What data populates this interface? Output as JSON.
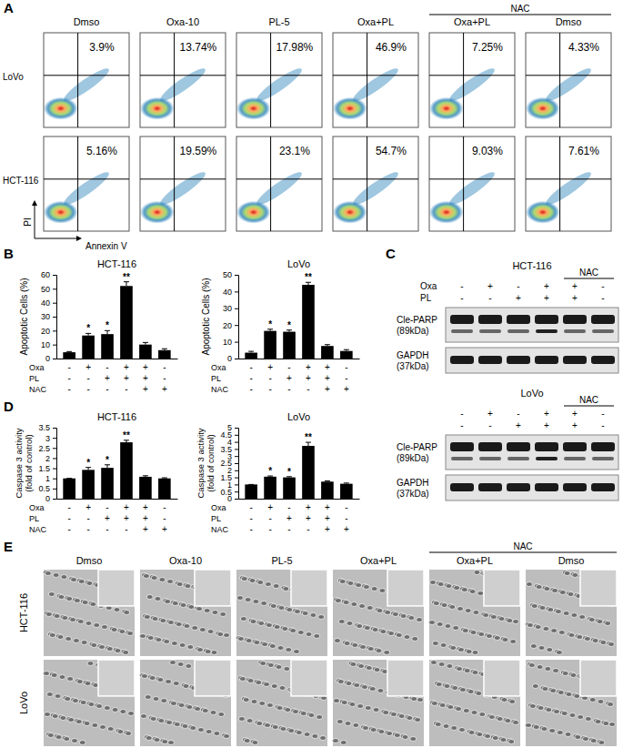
{
  "chart_data": [
    {
      "type": "bar",
      "title": "HCT-116",
      "y_label": "Apoptotic Cells (%)",
      "categories": [
        null,
        null,
        null,
        null,
        null,
        null
      ],
      "values": [
        4.5,
        16.5,
        17.5,
        52,
        10,
        6
      ],
      "errors": [
        0.5,
        1.5,
        2.5,
        3,
        1.5,
        1
      ],
      "annotations": [
        null,
        "*",
        "*",
        "**",
        null,
        null
      ],
      "color": "#000000",
      "ylim": [
        0,
        60
      ],
      "yticks": [
        0,
        10,
        20,
        30,
        40,
        50,
        60
      ],
      "tick_labels": "y",
      "treatments": [
        {
          "name": "Oxa",
          "signs": [
            "-",
            "+",
            "-",
            "+",
            "+",
            "-"
          ]
        },
        {
          "name": "PL",
          "signs": [
            "-",
            "-",
            "+",
            "+",
            "+",
            "-"
          ]
        },
        {
          "name": "NAC",
          "signs": [
            "-",
            "-",
            "-",
            "-",
            "+",
            "+"
          ]
        }
      ]
    },
    {
      "type": "bar",
      "title": "LoVo",
      "y_label": "Apoptotic Cells (%)",
      "categories": [
        null,
        null,
        null,
        null,
        null,
        null
      ],
      "values": [
        3.5,
        16.5,
        16,
        44,
        7.5,
        4.5
      ],
      "errors": [
        0.8,
        1,
        1,
        1.5,
        0.8,
        0.8
      ],
      "annotations": [
        null,
        "*",
        "*",
        "**",
        null,
        null
      ],
      "color": "#000000",
      "ylim": [
        0,
        50
      ],
      "yticks": [
        0,
        10,
        20,
        30,
        40,
        50
      ],
      "tick_labels": "y",
      "treatments": [
        {
          "name": "Oxa",
          "signs": [
            "-",
            "+",
            "-",
            "+",
            "+",
            "-"
          ]
        },
        {
          "name": "PL",
          "signs": [
            "-",
            "-",
            "+",
            "+",
            "+",
            "-"
          ]
        },
        {
          "name": "NAC",
          "signs": [
            "-",
            "-",
            "-",
            "-",
            "+",
            "+"
          ]
        }
      ]
    },
    {
      "type": "bar",
      "title": "HCT-116",
      "y_label": [
        "Caspase 3 activity",
        "(fold of control)"
      ],
      "categories": [
        null,
        null,
        null,
        null,
        null,
        null
      ],
      "values": [
        1,
        1.42,
        1.52,
        2.78,
        1.08,
        1.0
      ],
      "errors": [
        0,
        0.12,
        0.15,
        0.1,
        0.05,
        0.03
      ],
      "annotations": [
        null,
        "*",
        "*",
        "**",
        null,
        null
      ],
      "color": "#000000",
      "ylim": [
        0,
        3.5
      ],
      "yticks": [
        0,
        0.5,
        1,
        1.5,
        2,
        2.5,
        3,
        3.5
      ],
      "tick_labels": "y",
      "treatments": [
        {
          "name": "Oxa",
          "signs": [
            "-",
            "+",
            "-",
            "+",
            "+",
            "-"
          ]
        },
        {
          "name": "PL",
          "signs": [
            "-",
            "-",
            "+",
            "+",
            "+",
            "-"
          ]
        },
        {
          "name": "NAC",
          "signs": [
            "-",
            "-",
            "-",
            "-",
            "+",
            "+"
          ]
        }
      ]
    },
    {
      "type": "bar",
      "title": "LoVo",
      "y_label": [
        "Caspase 3 activity",
        "(fold of control)"
      ],
      "categories": [
        null,
        null,
        null,
        null,
        null,
        null
      ],
      "values": [
        1,
        1.55,
        1.5,
        3.72,
        1.2,
        1.05
      ],
      "errors": [
        0,
        0.05,
        0.05,
        0.25,
        0.05,
        0.05
      ],
      "annotations": [
        null,
        "*",
        "*",
        "**",
        null,
        null
      ],
      "color": "#000000",
      "ylim": [
        0,
        5
      ],
      "yticks": [
        0,
        0.5,
        1,
        1.5,
        2,
        2.5,
        3,
        3.5,
        4,
        4.5,
        5
      ],
      "tick_labels": "y",
      "treatments": [
        {
          "name": "Oxa",
          "signs": [
            "-",
            "+",
            "-",
            "+",
            "+",
            "-"
          ]
        },
        {
          "name": "PL",
          "signs": [
            "-",
            "-",
            "+",
            "+",
            "+",
            "-"
          ]
        },
        {
          "name": "NAC",
          "signs": [
            "-",
            "-",
            "-",
            "-",
            "+",
            "+"
          ]
        }
      ]
    }
  ],
  "figure": {
    "panel_labels": [
      "A",
      "B",
      "C",
      "D",
      "E"
    ],
    "flow": {
      "columns": [
        "Dmso",
        "Oxa-10",
        "PL-5",
        "Oxa+PL",
        "Oxa+PL",
        "Dmso"
      ],
      "group_label": "NAC",
      "rows": [
        "LoVo",
        "HCT-116"
      ],
      "percentages": [
        [
          "3.9%",
          "13.74%",
          "17.98%",
          "46.9%",
          "7.25%",
          "4.33%"
        ],
        [
          "5.16%",
          "19.59%",
          "23.1%",
          "54.7%",
          "9.03%",
          "7.61%"
        ]
      ],
      "x_label": "Annexin V",
      "y_label": "PI"
    },
    "blot": {
      "group_label": "NAC",
      "panels": [
        {
          "title": "HCT-116",
          "treatments": [
            {
              "name": "Oxa",
              "signs": [
                "-",
                "+",
                "-",
                "+",
                "+",
                "-"
              ]
            },
            {
              "name": "PL",
              "signs": [
                "-",
                "-",
                "+",
                "+",
                "+",
                "-"
              ]
            }
          ],
          "bands": [
            {
              "name": "Cle-PARP",
              "size": "(89kDa)"
            },
            {
              "name": "GAPDH",
              "size": "(37kDa)"
            }
          ]
        },
        {
          "title": "LoVo",
          "treatments": [
            {
              "name": null,
              "signs": [
                "-",
                "+",
                "-",
                "+",
                "+",
                "-"
              ]
            },
            {
              "name": null,
              "signs": [
                "-",
                "-",
                "+",
                "+",
                "+",
                "-"
              ]
            }
          ],
          "bands": [
            {
              "name": "Cle-PARP",
              "size": "(89kDa)"
            },
            {
              "name": "GAPDH",
              "size": "(37kDa)"
            }
          ]
        }
      ]
    },
    "images": {
      "columns": [
        "Dmso",
        "Oxa-10",
        "PL-5",
        "Oxa+PL",
        "Oxa+PL",
        "Dmso"
      ],
      "group_label": "NAC",
      "rows": [
        "HCT-116",
        "LoVo"
      ]
    }
  }
}
